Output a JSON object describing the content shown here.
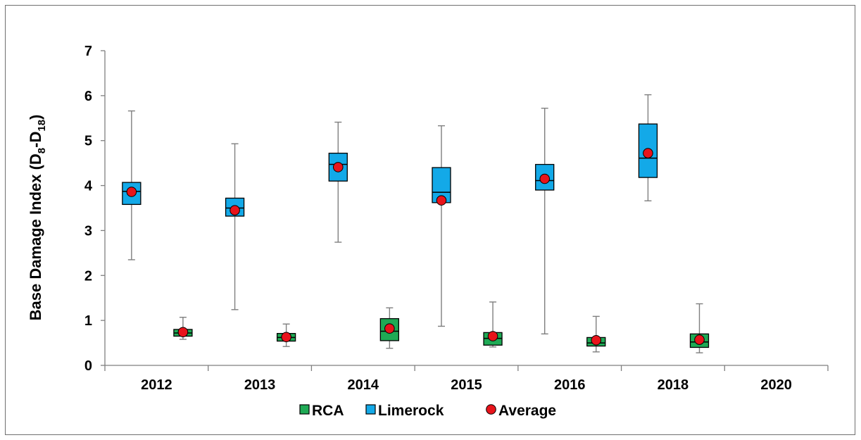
{
  "chart_data": {
    "type": "box",
    "title": "",
    "xlabel": "",
    "ylabel": {
      "main": "Base Damage Index (D",
      "sub1": "8",
      "mid": "-D",
      "sub2": "18",
      "end": ")"
    },
    "ylim": [
      0,
      7
    ],
    "y_ticks": [
      "0",
      "1",
      "2",
      "3",
      "4",
      "5",
      "6",
      "7"
    ],
    "categories": [
      "2012",
      "2013",
      "2014",
      "2015",
      "2016",
      "2018",
      "2020"
    ],
    "grid": false,
    "legend_position": "bottom",
    "series": [
      {
        "name": "Limerock",
        "color": "#13A9E8",
        "boxes": [
          {
            "category": "2012",
            "min": 2.35,
            "q1": 3.58,
            "median": 3.87,
            "q3": 4.07,
            "max": 5.66,
            "mean": 3.86
          },
          {
            "category": "2013",
            "min": 1.24,
            "q1": 3.32,
            "median": 3.5,
            "q3": 3.72,
            "max": 4.93,
            "mean": 3.45
          },
          {
            "category": "2014",
            "min": 2.74,
            "q1": 4.1,
            "median": 4.47,
            "q3": 4.72,
            "max": 5.41,
            "mean": 4.41
          },
          {
            "category": "2015",
            "min": 0.87,
            "q1": 3.62,
            "median": 3.85,
            "q3": 4.4,
            "max": 5.33,
            "mean": 3.67
          },
          {
            "category": "2016",
            "min": 0.7,
            "q1": 3.9,
            "median": 4.11,
            "q3": 4.47,
            "max": 5.72,
            "mean": 4.15
          },
          {
            "category": "2018",
            "min": 3.66,
            "q1": 4.18,
            "median": 4.61,
            "q3": 5.37,
            "max": 6.02,
            "mean": 4.72
          }
        ]
      },
      {
        "name": "RCA",
        "color": "#1FAA55",
        "boxes": [
          {
            "category": "2012",
            "min": 0.58,
            "q1": 0.65,
            "median": 0.72,
            "q3": 0.8,
            "max": 1.07,
            "mean": 0.74
          },
          {
            "category": "2013",
            "min": 0.42,
            "q1": 0.54,
            "median": 0.62,
            "q3": 0.71,
            "max": 0.92,
            "mean": 0.63
          },
          {
            "category": "2014",
            "min": 0.38,
            "q1": 0.55,
            "median": 0.76,
            "q3": 1.04,
            "max": 1.28,
            "mean": 0.82
          },
          {
            "category": "2015",
            "min": 0.41,
            "q1": 0.45,
            "median": 0.6,
            "q3": 0.73,
            "max": 1.41,
            "mean": 0.65
          },
          {
            "category": "2016",
            "min": 0.3,
            "q1": 0.43,
            "median": 0.5,
            "q3": 0.62,
            "max": 1.09,
            "mean": 0.56
          },
          {
            "category": "2018",
            "min": 0.28,
            "q1": 0.4,
            "median": 0.52,
            "q3": 0.7,
            "max": 1.37,
            "mean": 0.57
          }
        ]
      }
    ],
    "mean_marker": {
      "name": "Average",
      "color": "#E8141B"
    },
    "legend": [
      {
        "label": "RCA",
        "kind": "box",
        "color": "#1FAA55"
      },
      {
        "label": "Limerock",
        "kind": "box",
        "color": "#13A9E8"
      },
      {
        "label": "Average",
        "kind": "dot",
        "color": "#E8141B"
      }
    ]
  }
}
